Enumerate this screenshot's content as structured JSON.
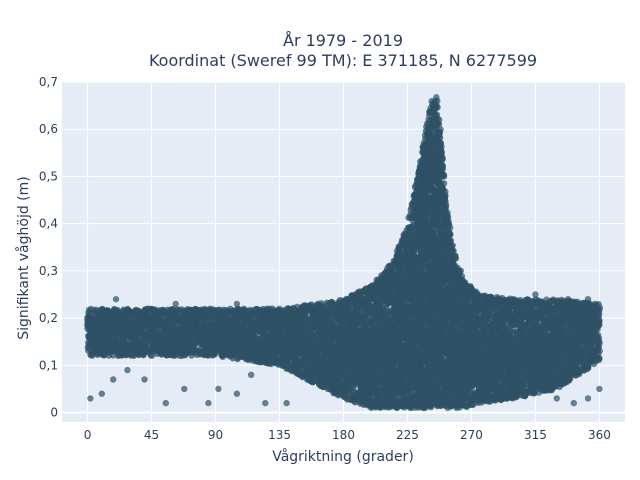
{
  "chart_data": {
    "type": "scatter",
    "title_lines": [
      "År 1979 - 2019",
      "Koordinat (Sweref 99 TM): E 371185, N 6277599"
    ],
    "xlabel": "Vågriktning (grader)",
    "ylabel": "Signifikant våghöjd (m)",
    "xlim": [
      -18,
      378
    ],
    "ylim": [
      -0.02,
      0.7
    ],
    "xticks": [
      0,
      45,
      90,
      135,
      180,
      225,
      270,
      315,
      360
    ],
    "xtick_labels": [
      "0",
      "45",
      "90",
      "135",
      "180",
      "225",
      "270",
      "315",
      "360"
    ],
    "yticks": [
      0,
      0.1,
      0.2,
      0.3,
      0.4,
      0.5,
      0.6,
      0.7
    ],
    "ytick_labels": [
      "0",
      "0,1",
      "0,2",
      "0,3",
      "0,4",
      "0,5",
      "0,6",
      "0,7"
    ],
    "grid": true,
    "background": "#e5ecf6",
    "marker_color": "#2f5166",
    "envelope": {
      "direction_deg": [
        0,
        45,
        90,
        135,
        180,
        200,
        215,
        225,
        232,
        238,
        242,
        245,
        248,
        252,
        258,
        265,
        275,
        300,
        330,
        360
      ],
      "max_height_m": [
        0.22,
        0.22,
        0.22,
        0.22,
        0.24,
        0.27,
        0.32,
        0.4,
        0.5,
        0.6,
        0.66,
        0.67,
        0.6,
        0.45,
        0.34,
        0.28,
        0.25,
        0.24,
        0.24,
        0.23
      ],
      "min_height_m": [
        0.12,
        0.12,
        0.12,
        0.1,
        0.03,
        0.01,
        0.01,
        0.01,
        0.01,
        0.01,
        0.01,
        0.01,
        0.01,
        0.01,
        0.01,
        0.01,
        0.02,
        0.03,
        0.05,
        0.11
      ]
    },
    "sample_points": [
      [
        2,
        0.03
      ],
      [
        10,
        0.04
      ],
      [
        18,
        0.07
      ],
      [
        28,
        0.09
      ],
      [
        40,
        0.07
      ],
      [
        55,
        0.02
      ],
      [
        68,
        0.05
      ],
      [
        85,
        0.02
      ],
      [
        92,
        0.05
      ],
      [
        105,
        0.04
      ],
      [
        115,
        0.08
      ],
      [
        125,
        0.02
      ],
      [
        140,
        0.02
      ],
      [
        20,
        0.24
      ],
      [
        62,
        0.23
      ],
      [
        105,
        0.23
      ],
      [
        130,
        0.22
      ],
      [
        238,
        0.55
      ],
      [
        244,
        0.62
      ],
      [
        246,
        0.66
      ],
      [
        252,
        0.42
      ],
      [
        232,
        0.47
      ],
      [
        250,
        0.35
      ],
      [
        262,
        0.28
      ],
      [
        330,
        0.03
      ],
      [
        342,
        0.02
      ],
      [
        352,
        0.03
      ],
      [
        360,
        0.05
      ],
      [
        335,
        0.07
      ],
      [
        338,
        0.24
      ],
      [
        352,
        0.24
      ],
      [
        300,
        0.21
      ],
      [
        315,
        0.25
      ]
    ]
  }
}
